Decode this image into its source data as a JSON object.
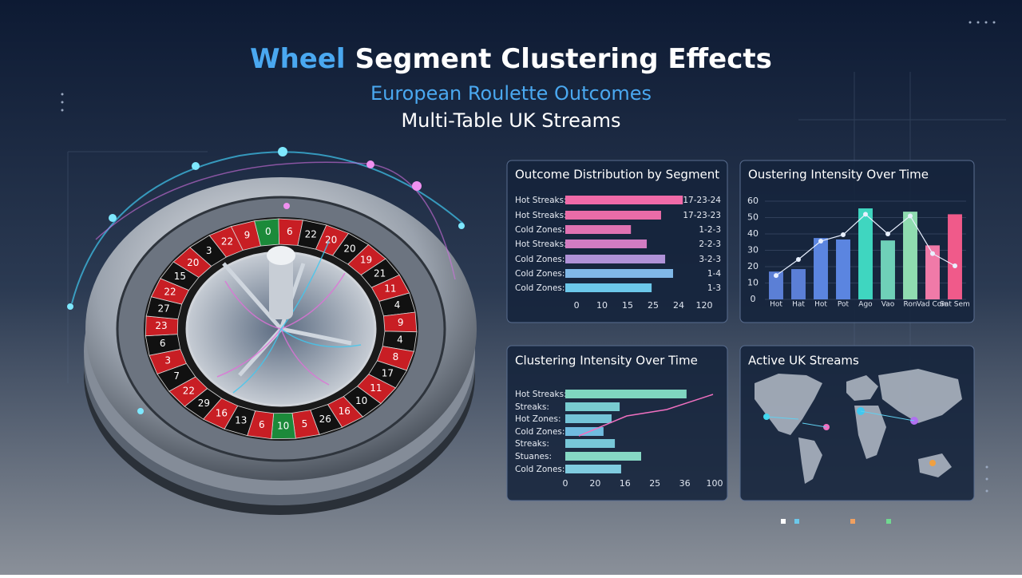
{
  "header": {
    "title_highlight": "Wheel",
    "title": "Segment Clustering Effects",
    "subtitle": "European Roulette Outcomes",
    "subtitle2": "Multi-Table UK Streams"
  },
  "wheel": {
    "numbers": [
      "9",
      "0",
      "6",
      "22",
      "20",
      "20",
      "19",
      "21",
      "11",
      "4",
      "9",
      "4",
      "8",
      "17",
      "11",
      "10",
      "16",
      "26",
      "5",
      "10",
      "6",
      "13",
      "16",
      "29",
      "22",
      "7",
      "3",
      "6",
      "23",
      "27",
      "22",
      "15",
      "20",
      "3",
      "22"
    ]
  },
  "map": {
    "title": "Active UK Streams"
  },
  "chart_data": [
    {
      "type": "hbar",
      "title": "Outcome Distribution by Segment",
      "categories": [
        "Hot Streaks:",
        "Hot Streaks:",
        "Cold Zones:",
        "Hot Streaks:",
        "Cold Zones:",
        "Cold Zones:",
        "Cold Zones:"
      ],
      "values": [
        4.16,
        3.31,
        2.13,
        2.75,
        3.47,
        3.78,
        2.94
      ],
      "value_labels": [
        "17-23-24",
        "17-23-23",
        "1-2-3",
        "2-2-3",
        "3-2-3",
        "1-4",
        "1-3"
      ],
      "colors": [
        "#f06aa8",
        "#ea6ca8",
        "#e072b2",
        "#d27cc2",
        "#b092d8",
        "#80b8e8",
        "#6cc8ea"
      ],
      "xlim": [
        -0.44,
        5.5
      ],
      "xticks": [
        {
          "value": 0,
          "label": "0"
        },
        {
          "value": 1,
          "label": "10"
        },
        {
          "value": 2,
          "label": "15"
        },
        {
          "value": 3,
          "label": "25"
        },
        {
          "value": 4,
          "label": "24"
        },
        {
          "value": 5,
          "label": "120"
        }
      ]
    },
    {
      "type": "barline",
      "title": "Oustering Intensity Over Time",
      "categories": [
        "Hot",
        "Hat",
        "Hot",
        "Pot",
        "Ago",
        "Vao",
        "Ron",
        "Vad Com",
        "Sat Sem"
      ],
      "series": [
        {
          "values": [
            17,
            18.5,
            37.5,
            36.6,
            55.6,
            36,
            53.6,
            33,
            52
          ],
          "colors": [
            "#5b7fd6",
            "#5b7fd6",
            "#5b85e0",
            "#5b85e0",
            "#3fd6c0",
            "#6fd0b8",
            "#8fdcb0",
            "#f07aa8",
            "#f05a8a"
          ]
        },
        {
          "values": [
            14.6,
            24.4,
            35.6,
            39.5,
            52,
            40,
            51,
            28,
            20.5
          ],
          "color": "#e8f0ff"
        }
      ],
      "ylim": [
        0,
        60
      ],
      "yticks": [
        0,
        10,
        20,
        30,
        40,
        50,
        60
      ],
      "grid": true
    },
    {
      "type": "hbar",
      "title": "Clustering Intensity Over Time",
      "categories": [
        "Hot Streaks:",
        "Streaks:",
        "Hot Zones:",
        "Cold Zones:",
        "Streaks:",
        "Stuanes:",
        "Cold Zones:"
      ],
      "values": [
        4.06,
        1.82,
        1.55,
        1.28,
        1.66,
        2.54,
        1.87
      ],
      "colors": [
        "#7fd6c0",
        "#78ccd0",
        "#74c4d8",
        "#70bce0",
        "#78c8d8",
        "#86d8c4",
        "#80cce0"
      ],
      "xlim": [
        0,
        5
      ],
      "xticks": [
        {
          "value": 0,
          "label": "0"
        },
        {
          "value": 1,
          "label": "20"
        },
        {
          "value": 2,
          "label": "16"
        },
        {
          "value": 3,
          "label": "25"
        },
        {
          "value": 4,
          "label": "36"
        },
        {
          "value": 5,
          "label": "100"
        }
      ]
    }
  ]
}
